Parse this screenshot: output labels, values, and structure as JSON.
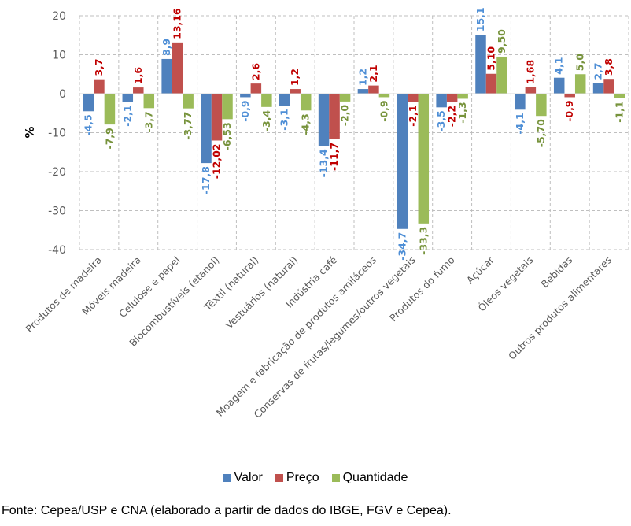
{
  "chart_data": {
    "type": "bar",
    "title": "",
    "xlabel": "",
    "ylabel": "%",
    "ylim": [
      -40,
      20
    ],
    "yticks": [
      20,
      10,
      0,
      -10,
      -20,
      -30,
      -40
    ],
    "grid": true,
    "legend_position": "bottom",
    "categories": [
      "Produtos de madeira",
      "Móveis madeira",
      "Celulose e papel",
      "Biocombustíveis (etanol)",
      "Têxtil (natural)",
      "Vestuários (natural)",
      "Indústria café",
      "Moagem e fabricação de produtos amiláceos",
      "Conservas de frutas/legumes/outros vegetais",
      "Produtos do fumo",
      "Açúcar",
      "Óleos vegetais",
      "Bebidas",
      "Outros produtos alimentares"
    ],
    "series": [
      {
        "name": "Valor",
        "color": "#4f81bd",
        "label_color": "#4f8fd6",
        "values": [
          -4.5,
          -2.1,
          8.9,
          -17.8,
          -0.9,
          -3.1,
          -13.4,
          1.2,
          -34.7,
          -3.5,
          15.1,
          -4.1,
          4.1,
          2.7
        ],
        "labels": [
          "-4,5",
          "-2,1",
          "8,9",
          "-17,8",
          "-0,9",
          "-3,1",
          "-13,4",
          "1,2",
          "-34,7",
          "-3,5",
          "15,1",
          "-4,1",
          "4,1",
          "2,7"
        ]
      },
      {
        "name": "Preço",
        "color": "#c0504d",
        "label_color": "#c00000",
        "values": [
          3.7,
          1.6,
          13.16,
          -12.02,
          2.6,
          1.2,
          -11.7,
          2.1,
          -2.1,
          -2.2,
          5.1,
          1.68,
          -0.9,
          3.8
        ],
        "labels": [
          "3,7",
          "1,6",
          "13,16",
          "-12,02",
          "2,6",
          "1,2",
          "-11,7",
          "2,1",
          "-2,1",
          "-2,2",
          "5,10",
          "1,68",
          "-0,9",
          "3,8"
        ]
      },
      {
        "name": "Quantidade",
        "color": "#9bbb59",
        "label_color": "#77933c",
        "values": [
          -7.9,
          -3.7,
          -3.77,
          -6.53,
          -3.4,
          -4.3,
          -2.0,
          -0.9,
          -33.3,
          -1.3,
          9.5,
          -5.7,
          5.0,
          -1.1
        ],
        "labels": [
          "-7,9",
          "-3,7",
          "-3,77",
          "-6,53",
          "-3,4",
          "-4,3",
          "-2,0",
          "-0,9",
          "-33,3",
          "-1,3",
          "9,50",
          "-5,70",
          "5,0",
          "-1,1"
        ]
      }
    ]
  },
  "legend": {
    "items": [
      {
        "label": "Valor",
        "color": "#4f81bd"
      },
      {
        "label": "Preço",
        "color": "#c0504d"
      },
      {
        "label": "Quantidade",
        "color": "#9bbb59"
      }
    ]
  },
  "source": "Fonte: Cepea/USP e CNA (elaborado a partir de dados do IBGE, FGV e Cepea)."
}
